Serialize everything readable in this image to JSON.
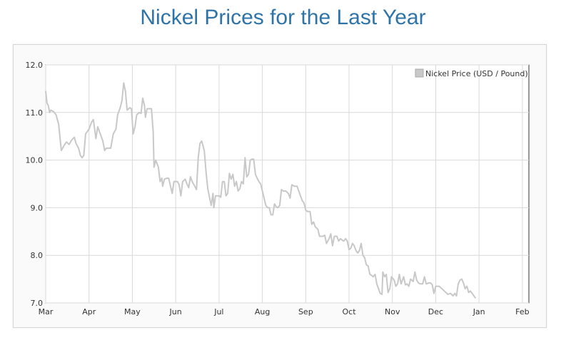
{
  "title": "Nickel Prices for the Last Year",
  "chart_data": {
    "type": "line",
    "title": "Nickel Prices for the Last Year",
    "xlabel": "",
    "ylabel": "",
    "x_range_months": [
      0,
      11.15
    ],
    "ylim": [
      7.0,
      12.0
    ],
    "y_ticks": [
      "7.0",
      "8.0",
      "9.0",
      "10.0",
      "11.0",
      "12.0"
    ],
    "x_tick_labels": [
      "Mar",
      "Apr",
      "May",
      "Jun",
      "Jul",
      "Aug",
      "Sep",
      "Oct",
      "Nov",
      "Dec",
      "Jan",
      "Feb"
    ],
    "grid": true,
    "legend_position": "top-right",
    "series": [
      {
        "name": "Nickel Price (USD / Pound)",
        "color": "#c8c8c8",
        "points": [
          [
            0.0,
            11.45
          ],
          [
            0.03,
            11.2
          ],
          [
            0.06,
            11.15
          ],
          [
            0.09,
            11.0
          ],
          [
            0.12,
            11.05
          ],
          [
            0.18,
            11.02
          ],
          [
            0.24,
            10.95
          ],
          [
            0.3,
            10.75
          ],
          [
            0.36,
            10.2
          ],
          [
            0.42,
            10.3
          ],
          [
            0.48,
            10.38
          ],
          [
            0.54,
            10.33
          ],
          [
            0.6,
            10.42
          ],
          [
            0.66,
            10.48
          ],
          [
            0.7,
            10.35
          ],
          [
            0.76,
            10.25
          ],
          [
            0.8,
            10.1
          ],
          [
            0.84,
            10.05
          ],
          [
            0.88,
            10.1
          ],
          [
            0.92,
            10.55
          ],
          [
            1.0,
            10.65
          ],
          [
            1.06,
            10.8
          ],
          [
            1.1,
            10.85
          ],
          [
            1.16,
            10.45
          ],
          [
            1.2,
            10.7
          ],
          [
            1.26,
            10.55
          ],
          [
            1.32,
            10.4
          ],
          [
            1.36,
            10.2
          ],
          [
            1.4,
            10.25
          ],
          [
            1.5,
            10.25
          ],
          [
            1.56,
            10.55
          ],
          [
            1.62,
            10.65
          ],
          [
            1.66,
            10.95
          ],
          [
            1.72,
            11.1
          ],
          [
            1.76,
            11.25
          ],
          [
            1.8,
            11.62
          ],
          [
            1.84,
            11.45
          ],
          [
            1.88,
            11.05
          ],
          [
            1.94,
            11.1
          ],
          [
            1.98,
            11.08
          ],
          [
            2.02,
            10.55
          ],
          [
            2.06,
            10.7
          ],
          [
            2.1,
            10.95
          ],
          [
            2.16,
            11.0
          ],
          [
            2.2,
            10.98
          ],
          [
            2.24,
            11.3
          ],
          [
            2.28,
            11.15
          ],
          [
            2.3,
            10.9
          ],
          [
            2.34,
            11.08
          ],
          [
            2.4,
            11.08
          ],
          [
            2.44,
            11.08
          ],
          [
            2.48,
            10.6
          ],
          [
            2.5,
            9.85
          ],
          [
            2.54,
            10.0
          ],
          [
            2.6,
            9.85
          ],
          [
            2.64,
            9.55
          ],
          [
            2.68,
            9.62
          ],
          [
            2.7,
            9.45
          ],
          [
            2.74,
            9.6
          ],
          [
            2.8,
            9.62
          ],
          [
            2.84,
            9.62
          ],
          [
            2.88,
            9.45
          ],
          [
            2.92,
            9.3
          ],
          [
            2.96,
            9.55
          ],
          [
            3.04,
            9.55
          ],
          [
            3.08,
            9.48
          ],
          [
            3.12,
            9.25
          ],
          [
            3.16,
            9.55
          ],
          [
            3.22,
            9.6
          ],
          [
            3.26,
            9.5
          ],
          [
            3.3,
            9.42
          ],
          [
            3.34,
            9.65
          ],
          [
            3.38,
            9.55
          ],
          [
            3.44,
            9.45
          ],
          [
            3.48,
            9.38
          ],
          [
            3.52,
            10.05
          ],
          [
            3.56,
            10.35
          ],
          [
            3.6,
            10.4
          ],
          [
            3.66,
            10.2
          ],
          [
            3.7,
            9.75
          ],
          [
            3.74,
            9.4
          ],
          [
            3.78,
            9.22
          ],
          [
            3.82,
            9.05
          ],
          [
            3.86,
            9.3
          ],
          [
            3.88,
            9.0
          ],
          [
            3.92,
            9.25
          ],
          [
            4.0,
            9.25
          ],
          [
            4.04,
            9.22
          ],
          [
            4.08,
            9.55
          ],
          [
            4.12,
            9.55
          ],
          [
            4.16,
            9.25
          ],
          [
            4.2,
            9.3
          ],
          [
            4.24,
            9.72
          ],
          [
            4.28,
            9.6
          ],
          [
            4.32,
            9.7
          ],
          [
            4.36,
            9.45
          ],
          [
            4.4,
            9.55
          ],
          [
            4.44,
            9.35
          ],
          [
            4.48,
            9.4
          ],
          [
            4.52,
            9.55
          ],
          [
            4.56,
            9.5
          ],
          [
            4.6,
            10.05
          ],
          [
            4.64,
            9.65
          ],
          [
            4.68,
            9.7
          ],
          [
            4.72,
            10.0
          ],
          [
            4.76,
            10.02
          ],
          [
            4.8,
            10.02
          ],
          [
            4.84,
            9.7
          ],
          [
            4.88,
            9.62
          ],
          [
            4.92,
            9.55
          ],
          [
            4.96,
            9.5
          ],
          [
            5.0,
            9.35
          ],
          [
            5.04,
            9.2
          ],
          [
            5.08,
            9.05
          ],
          [
            5.12,
            9.0
          ],
          [
            5.16,
            9.0
          ],
          [
            5.2,
            8.85
          ],
          [
            5.24,
            8.85
          ],
          [
            5.28,
            9.08
          ],
          [
            5.32,
            9.02
          ],
          [
            5.36,
            9.0
          ],
          [
            5.4,
            9.05
          ],
          [
            5.44,
            9.38
          ],
          [
            5.48,
            9.35
          ],
          [
            5.54,
            9.35
          ],
          [
            5.6,
            9.3
          ],
          [
            5.64,
            9.2
          ],
          [
            5.68,
            9.48
          ],
          [
            5.74,
            9.45
          ],
          [
            5.8,
            9.45
          ],
          [
            5.86,
            9.3
          ],
          [
            5.92,
            9.15
          ],
          [
            5.96,
            9.1
          ],
          [
            6.0,
            8.95
          ],
          [
            6.04,
            8.92
          ],
          [
            6.1,
            8.92
          ],
          [
            6.14,
            8.65
          ],
          [
            6.18,
            8.7
          ],
          [
            6.22,
            8.6
          ],
          [
            6.28,
            8.55
          ],
          [
            6.32,
            8.4
          ],
          [
            6.36,
            8.4
          ],
          [
            6.4,
            8.4
          ],
          [
            6.44,
            8.42
          ],
          [
            6.48,
            8.25
          ],
          [
            6.54,
            8.35
          ],
          [
            6.58,
            8.45
          ],
          [
            6.62,
            8.2
          ],
          [
            6.66,
            8.4
          ],
          [
            6.72,
            8.4
          ],
          [
            6.76,
            8.3
          ],
          [
            6.8,
            8.35
          ],
          [
            6.84,
            8.32
          ],
          [
            6.88,
            8.3
          ],
          [
            6.92,
            8.35
          ],
          [
            6.96,
            8.3
          ],
          [
            7.0,
            8.12
          ],
          [
            7.04,
            8.15
          ],
          [
            7.08,
            8.25
          ],
          [
            7.12,
            8.2
          ],
          [
            7.16,
            8.1
          ],
          [
            7.2,
            8.05
          ],
          [
            7.24,
            8.1
          ],
          [
            7.28,
            8.25
          ],
          [
            7.32,
            8.0
          ],
          [
            7.36,
            7.95
          ],
          [
            7.4,
            7.8
          ],
          [
            7.44,
            7.78
          ],
          [
            7.48,
            7.6
          ],
          [
            7.52,
            7.58
          ],
          [
            7.56,
            7.55
          ],
          [
            7.6,
            7.6
          ],
          [
            7.64,
            7.4
          ],
          [
            7.68,
            7.3
          ],
          [
            7.72,
            7.2
          ],
          [
            7.76,
            7.18
          ],
          [
            7.78,
            7.65
          ],
          [
            7.82,
            7.55
          ],
          [
            7.86,
            7.6
          ],
          [
            7.9,
            7.22
          ],
          [
            7.94,
            7.3
          ],
          [
            7.98,
            7.55
          ],
          [
            8.04,
            7.48
          ],
          [
            8.08,
            7.35
          ],
          [
            8.12,
            7.4
          ],
          [
            8.16,
            7.6
          ],
          [
            8.2,
            7.4
          ],
          [
            8.26,
            7.55
          ],
          [
            8.3,
            7.38
          ],
          [
            8.34,
            7.4
          ],
          [
            8.38,
            7.35
          ],
          [
            8.42,
            7.5
          ],
          [
            8.48,
            7.45
          ],
          [
            8.52,
            7.65
          ],
          [
            8.56,
            7.48
          ],
          [
            8.6,
            7.42
          ],
          [
            8.64,
            7.4
          ],
          [
            8.7,
            7.4
          ],
          [
            8.74,
            7.55
          ],
          [
            8.78,
            7.4
          ],
          [
            8.84,
            7.42
          ],
          [
            8.88,
            7.42
          ],
          [
            8.92,
            7.38
          ],
          [
            8.96,
            7.2
          ],
          [
            9.0,
            7.35
          ],
          [
            9.08,
            7.35
          ],
          [
            9.14,
            7.3
          ],
          [
            9.2,
            7.25
          ],
          [
            9.28,
            7.18
          ],
          [
            9.34,
            7.2
          ],
          [
            9.4,
            7.15
          ],
          [
            9.44,
            7.2
          ],
          [
            9.48,
            7.15
          ],
          [
            9.52,
            7.4
          ],
          [
            9.56,
            7.48
          ],
          [
            9.6,
            7.5
          ],
          [
            9.64,
            7.42
          ],
          [
            9.68,
            7.3
          ],
          [
            9.72,
            7.35
          ],
          [
            9.76,
            7.22
          ],
          [
            9.8,
            7.25
          ],
          [
            9.84,
            7.2
          ],
          [
            9.88,
            7.15
          ],
          [
            9.92,
            7.1
          ]
        ]
      }
    ]
  }
}
